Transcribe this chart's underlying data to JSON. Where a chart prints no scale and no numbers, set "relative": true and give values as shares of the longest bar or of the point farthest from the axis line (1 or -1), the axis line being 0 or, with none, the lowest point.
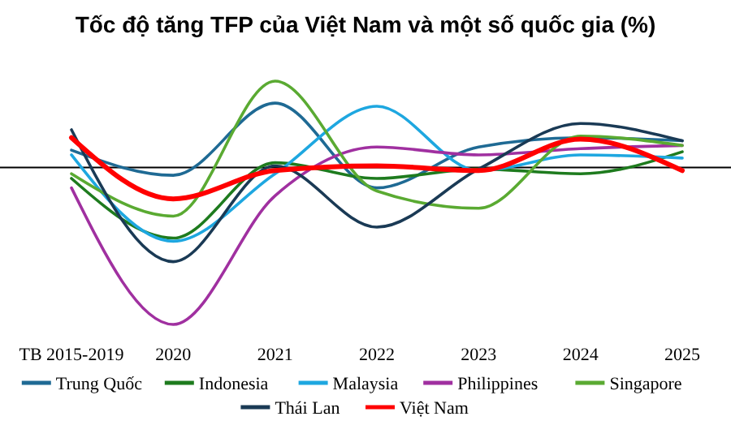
{
  "chart_data": {
    "type": "line",
    "title": "Tốc độ tăng TFP của Việt Nam và một số quốc gia (%)",
    "relative": true,
    "categories": [
      "TB 2015-2019",
      "2020",
      "2021",
      "2022",
      "2023",
      "2024",
      "2025"
    ],
    "legend": "bottom",
    "marker": "none",
    "line_style": "solid",
    "series": [
      {
        "name": "Trung Quốc",
        "color": "#1f6a94",
        "values": [
          0.11,
          -0.05,
          0.41,
          -0.13,
          0.13,
          0.19,
          0.17
        ]
      },
      {
        "name": "Indonesia",
        "color": "#1e7b1e",
        "values": [
          -0.07,
          -0.45,
          0.03,
          -0.07,
          -0.01,
          -0.04,
          0.1
        ]
      },
      {
        "name": "Malaysia",
        "color": "#1ea7e0",
        "values": [
          0.08,
          -0.47,
          -0.04,
          0.39,
          -0.02,
          0.08,
          0.06
        ]
      },
      {
        "name": "Philippines",
        "color": "#a030a0",
        "values": [
          -0.13,
          -1,
          -0.18,
          0.13,
          0.08,
          0.12,
          0.14
        ]
      },
      {
        "name": "Singapore",
        "color": "#5aaa32",
        "values": [
          -0.04,
          -0.31,
          0.55,
          -0.15,
          -0.26,
          0.2,
          0.14
        ]
      },
      {
        "name": "Thái Lan",
        "color": "#1a3a55",
        "values": [
          0.24,
          -0.6,
          0.01,
          -0.38,
          -0.01,
          0.28,
          0.17
        ]
      },
      {
        "name": "Việt Nam",
        "color": "#ff0000",
        "values": [
          0.19,
          -0.2,
          -0.02,
          0.01,
          -0.02,
          0.18,
          -0.02
        ]
      }
    ]
  }
}
